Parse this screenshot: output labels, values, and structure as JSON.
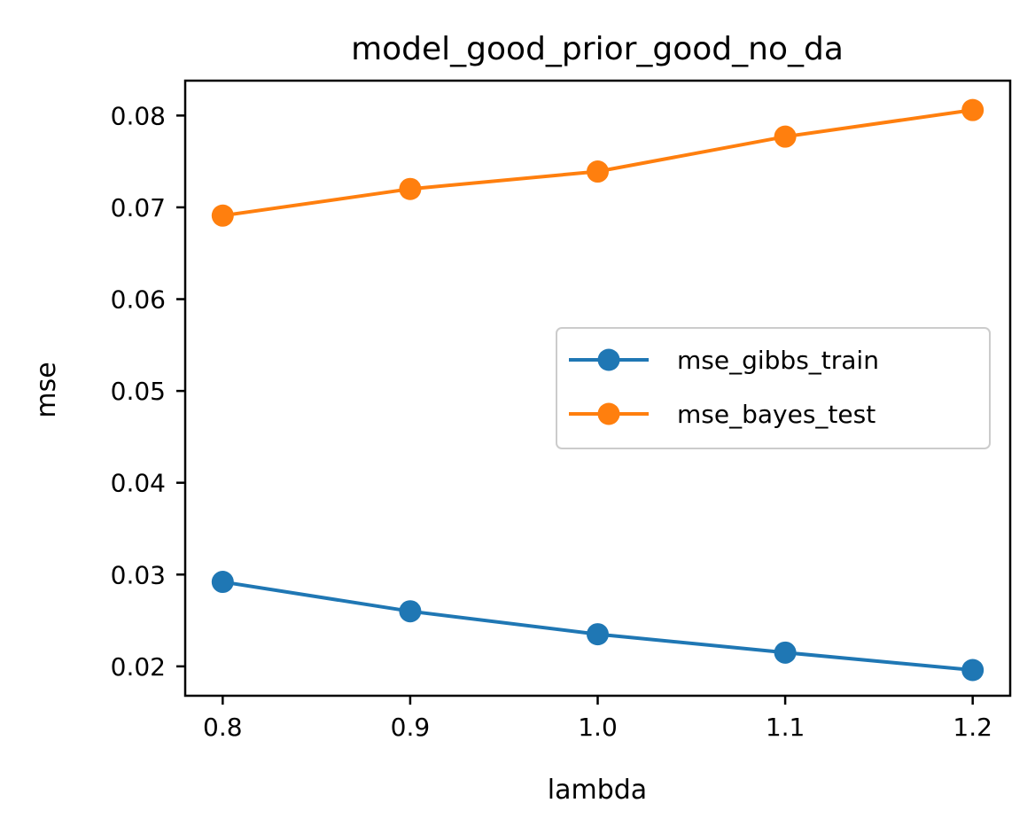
{
  "chart_data": {
    "type": "line",
    "title": "model_good_prior_good_no_da",
    "xlabel": "lambda",
    "ylabel": "mse",
    "x": [
      0.8,
      0.9,
      1.0,
      1.1,
      1.2
    ],
    "x_ticks": [
      "0.8",
      "0.9",
      "1.0",
      "1.1",
      "1.2"
    ],
    "y_ticks": [
      "0.02",
      "0.03",
      "0.04",
      "0.05",
      "0.06",
      "0.07",
      "0.08"
    ],
    "xlim": [
      0.78,
      1.22
    ],
    "ylim": [
      0.0168,
      0.0838
    ],
    "grid": false,
    "legend_position": "center-right",
    "series": [
      {
        "name": "mse_gibbs_train",
        "color": "#1f77b4",
        "marker": "circle",
        "values": [
          0.0292,
          0.026,
          0.0235,
          0.0215,
          0.0196
        ]
      },
      {
        "name": "mse_bayes_test",
        "color": "#ff7f0e",
        "marker": "circle",
        "values": [
          0.0691,
          0.072,
          0.0739,
          0.0777,
          0.0806
        ]
      }
    ]
  }
}
